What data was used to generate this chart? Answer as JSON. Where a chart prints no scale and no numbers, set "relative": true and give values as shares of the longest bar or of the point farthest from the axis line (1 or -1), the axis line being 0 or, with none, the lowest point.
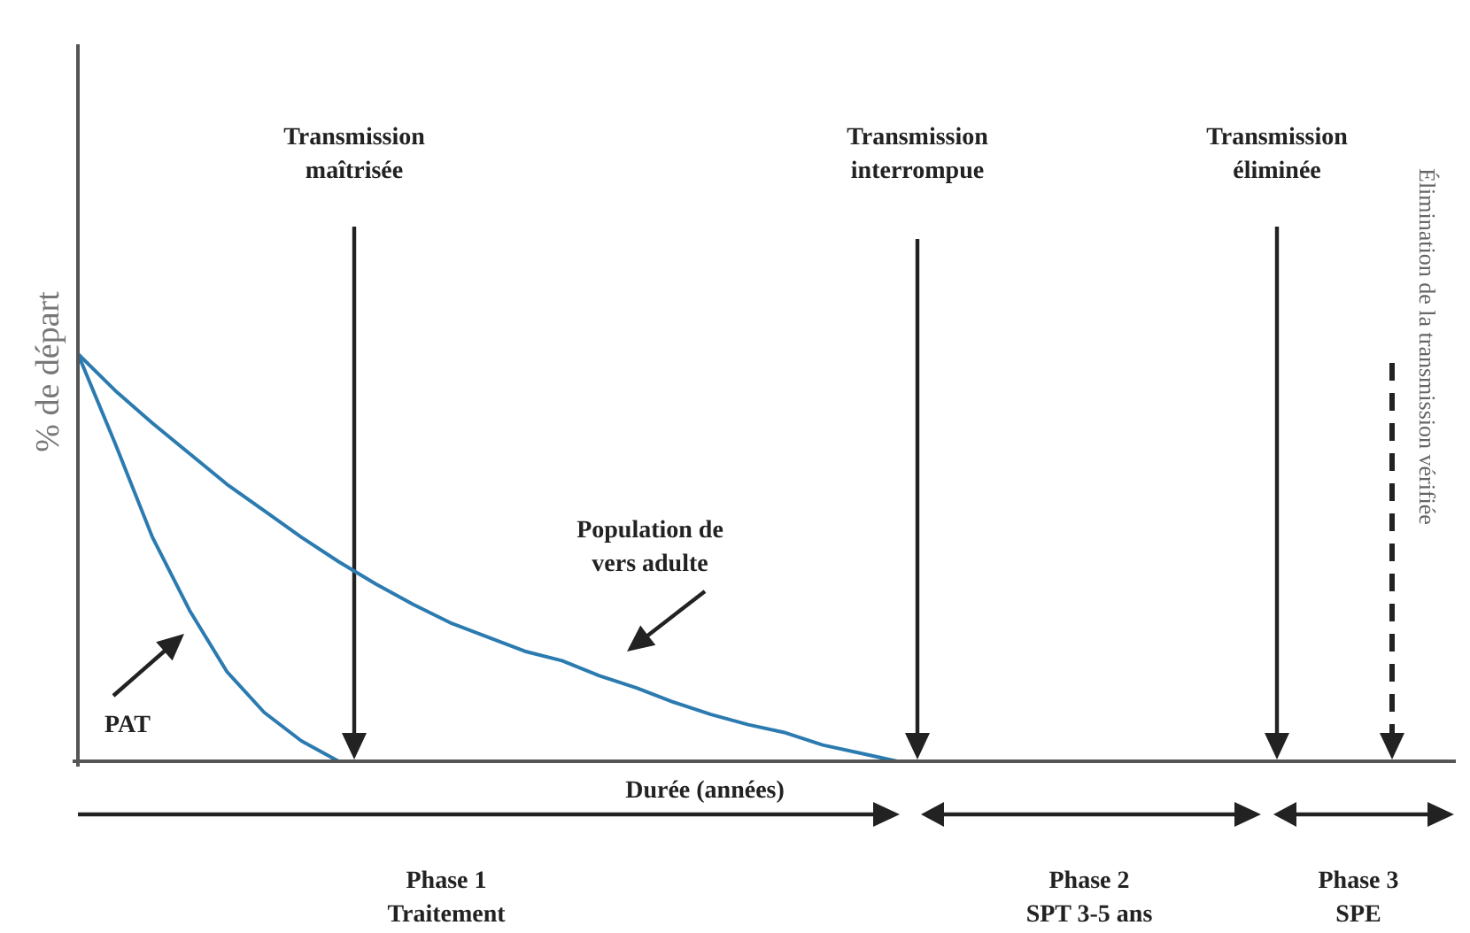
{
  "chart_data": {
    "type": "line",
    "relative": true,
    "xlabel": "Durée (années)",
    "ylabel": "% de départ",
    "marker": "none",
    "line_style": "solid",
    "categories": [
      null,
      null,
      null,
      null,
      null,
      null,
      null,
      null,
      null,
      null,
      null,
      null,
      null,
      null,
      null,
      null,
      null,
      null,
      null,
      null,
      null,
      null,
      null,
      null,
      null,
      null,
      null,
      null,
      null,
      null,
      null,
      null,
      null,
      null,
      null,
      null,
      null,
      null
    ],
    "series": [
      {
        "color": "#2b7bb0",
        "values": [
          1,
          0.91,
          0.83,
          0.755,
          0.68,
          0.615,
          0.55,
          0.49,
          0.435,
          0.385,
          0.34,
          0.305,
          0.27,
          0.247,
          0.21,
          0.18,
          0.145,
          0.115,
          0.09,
          0.07,
          0.04,
          0.02,
          0,
          null,
          null,
          null,
          null,
          null,
          null,
          null,
          null,
          null,
          null,
          null,
          null,
          null,
          null,
          null
        ]
      },
      {
        "color": "#2b7bb0",
        "values": [
          1,
          0.78,
          0.55,
          0.37,
          0.22,
          0.12,
          0.05,
          0,
          null,
          null,
          null,
          null,
          null,
          null,
          null,
          null,
          null,
          null,
          null,
          null,
          null,
          null,
          null,
          null,
          null,
          null,
          null,
          null,
          null,
          null,
          null,
          null,
          null,
          null,
          null,
          null,
          null,
          null
        ]
      }
    ],
    "annotations": [
      "Transmission\nmaîtrisée",
      "Transmission\ninterrompue",
      "Transmission\néliminée",
      "Élimination de la transmission vérifiée",
      "Phase 1\nTraitement",
      "Phase 2\nSPT 3-5 ans",
      "Phase 3\nSPE",
      "Population de\nvers adulte",
      "PAT"
    ]
  }
}
